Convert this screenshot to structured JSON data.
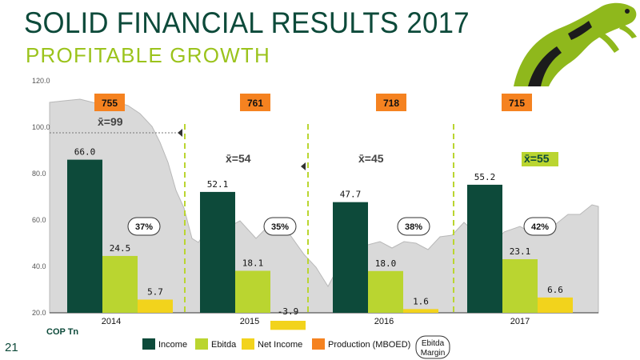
{
  "header": {
    "title": "SOLID FINANCIAL RESULTS 2017",
    "subtitle": "PROFITABLE GROWTH"
  },
  "page_number": "21",
  "colors": {
    "income": "#0d4a3a",
    "ebitda": "#bad530",
    "net_income": "#f2d31c",
    "production": "#f58220",
    "price_area": "#d9d9d9",
    "divider": "#bad530",
    "title": "#0d4a3a",
    "subtitle": "#9bc31c"
  },
  "chart_data": {
    "type": "bar",
    "unit_label": "COP Tn",
    "ylim": [
      20,
      120
    ],
    "yticks": [
      "20.0",
      "40.0",
      "60.0",
      "80.0",
      "100.0",
      "120.0"
    ],
    "categories": [
      "2014",
      "2015",
      "2016",
      "2017"
    ],
    "series": [
      {
        "name": "Income",
        "values": [
          66.0,
          52.1,
          47.7,
          55.2
        ],
        "labels": [
          "66.0",
          "52.1",
          "47.7",
          "55.2"
        ]
      },
      {
        "name": "Ebitda",
        "values": [
          24.5,
          18.1,
          18.0,
          23.1
        ],
        "labels": [
          "24.5",
          "18.1",
          "18.0",
          "23.1"
        ]
      },
      {
        "name": "Net Income",
        "values": [
          5.7,
          -3.9,
          1.6,
          6.6
        ],
        "labels": [
          "5.7",
          "-3.9",
          "1.6",
          "6.6"
        ]
      }
    ],
    "production": {
      "name": "Production (MBOED)",
      "values": [
        "755",
        "761",
        "718",
        "715"
      ]
    },
    "ebitda_margin": {
      "name": "Ebitda Margin",
      "values": [
        "37%",
        "35%",
        "38%",
        "42%"
      ]
    },
    "price_averages": [
      "x̄=99",
      "x̄=54",
      "x̄=45",
      "x̄=55"
    ],
    "legend": [
      "Income",
      "Ebitda",
      "Net Income",
      "Production (MBOED)",
      "Ebitda Margin"
    ],
    "grid": false
  }
}
